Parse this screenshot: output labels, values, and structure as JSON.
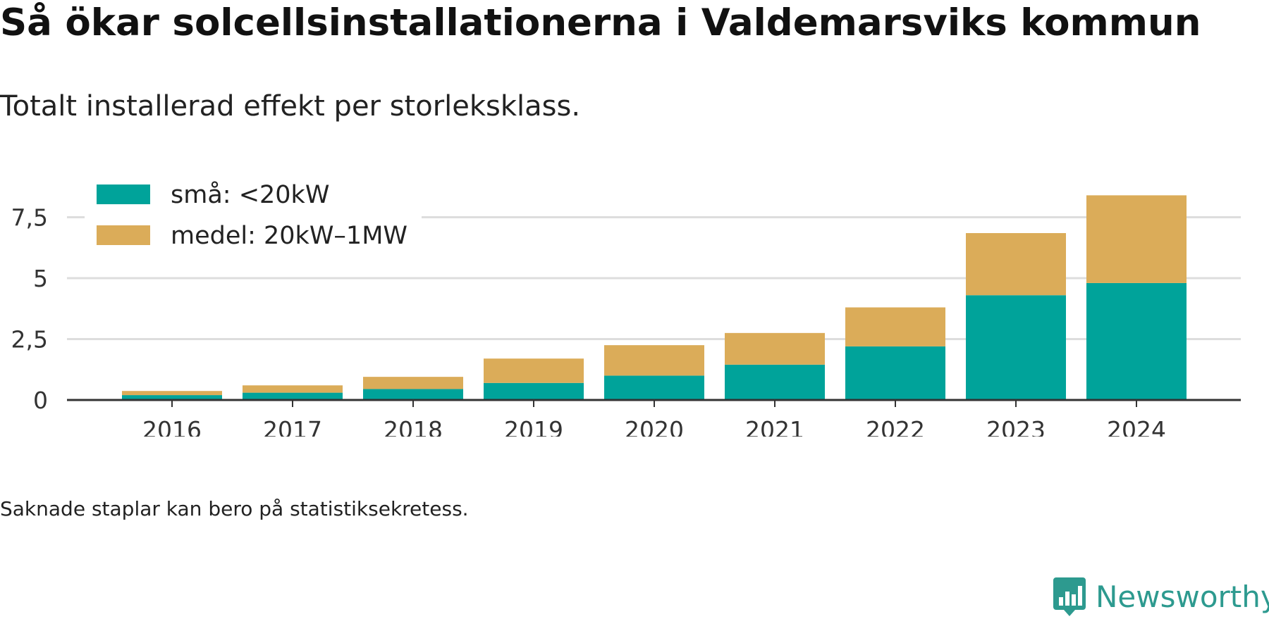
{
  "header": {
    "title": "Så ökar solcellsinstallationerna i Valdemarsviks kommun",
    "subtitle": "Totalt installerad effekt per storleksklass."
  },
  "footer": {
    "note": "Saknade staplar kan bero på statistiksekretess.",
    "brand": "Newsworthy",
    "brand_icon": "newsworthy-logo-icon"
  },
  "colors": {
    "sma": "#00a39a",
    "medel": "#dbac59",
    "grid": "#dddddd",
    "axis": "#333333",
    "brand": "#2d9a8f"
  },
  "chart_data": {
    "type": "bar",
    "stacked": true,
    "categories": [
      "2016",
      "2017",
      "2018",
      "2019",
      "2020",
      "2021",
      "2022",
      "2023",
      "2024"
    ],
    "series": [
      {
        "name": "små: <20kW",
        "values": [
          0.2,
          0.3,
          0.45,
          0.7,
          1.0,
          1.45,
          2.2,
          4.3,
          4.8
        ]
      },
      {
        "name": "medel: 20kW–1MW",
        "values": [
          0.17,
          0.3,
          0.5,
          1.0,
          1.25,
          1.3,
          1.6,
          2.55,
          3.6
        ]
      }
    ],
    "yticks": [
      "0",
      "2,5",
      "5",
      "7,5"
    ],
    "ytick_values": [
      0,
      2.5,
      5,
      7.5
    ],
    "ylim": [
      0,
      8.5
    ],
    "xlabel": "",
    "ylabel": "",
    "grid": true,
    "legend_position": "top-left"
  }
}
